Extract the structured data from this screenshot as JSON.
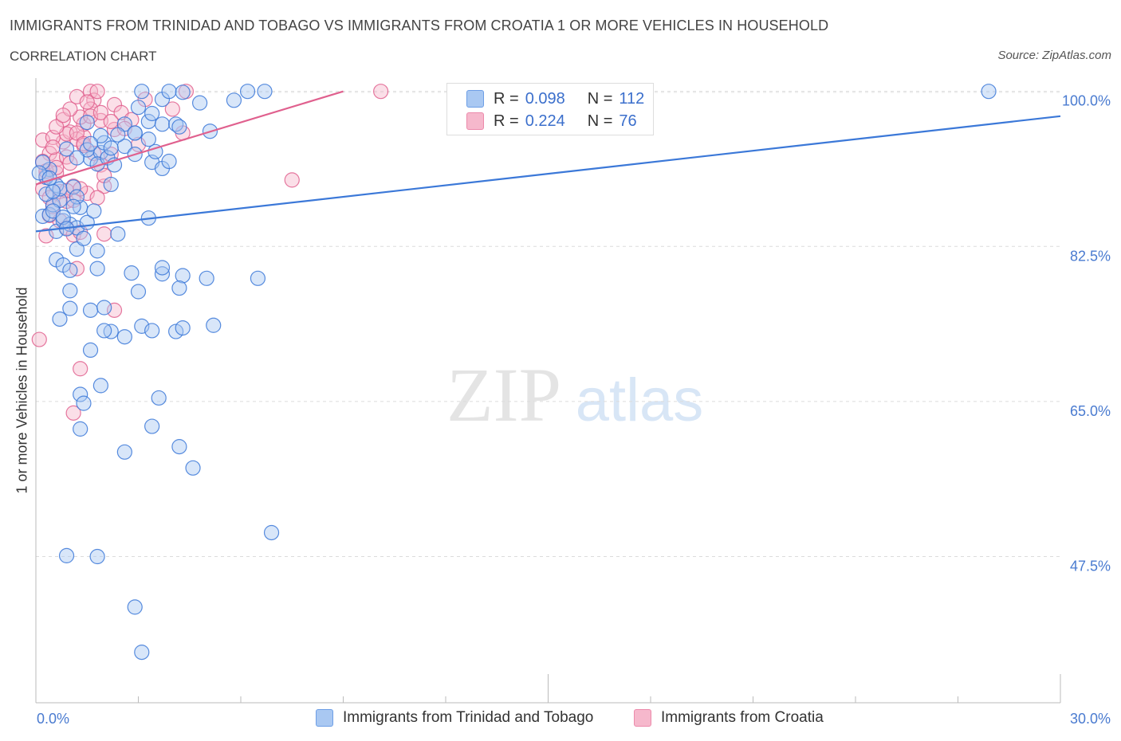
{
  "title": "IMMIGRANTS FROM TRINIDAD AND TOBAGO VS IMMIGRANTS FROM CROATIA 1 OR MORE VEHICLES IN HOUSEHOLD",
  "subtitle": "CORRELATION CHART",
  "source": "Source: ZipAtlas.com",
  "watermark": {
    "zip": "ZIP",
    "atlas": "atlas"
  },
  "legend": {
    "series1": {
      "r_label": "R = ",
      "r_value": "0.098",
      "n_label": "N = ",
      "n_value": "112"
    },
    "series2": {
      "r_label": "R = ",
      "r_value": "0.224",
      "n_label": "N = ",
      "n_value": "76"
    }
  },
  "chart_data": {
    "type": "scatter",
    "title": "IMMIGRANTS FROM TRINIDAD AND TOBAGO VS IMMIGRANTS FROM CROATIA 1 OR MORE VEHICLES IN HOUSEHOLD",
    "xlabel": "",
    "ylabel": "1 or more Vehicles in Household",
    "xlim": [
      0,
      30
    ],
    "ylim": [
      31,
      101.5
    ],
    "x_tick_labels": [
      {
        "value": 0,
        "label": "0.0%"
      },
      {
        "value": 30,
        "label": "30.0%"
      }
    ],
    "y_tick_labels": [
      {
        "value": 100,
        "label": "100.0%"
      },
      {
        "value": 82.5,
        "label": "82.5%"
      },
      {
        "value": 65,
        "label": "65.0%"
      },
      {
        "value": 47.5,
        "label": "47.5%"
      }
    ],
    "grid": true,
    "legend_position": "top-center",
    "colors": {
      "series1": "#3b78d8",
      "series2": "#e0608e",
      "fill1": "#a9c8f2",
      "fill2": "#f6b8cc"
    },
    "series": [
      {
        "name": "Immigrants from Trinidad and Tobago",
        "R": 0.098,
        "N": 112,
        "trend": {
          "x": [
            0,
            30
          ],
          "y": [
            84.2,
            97.2
          ]
        },
        "points": [
          [
            0.2,
            85.9
          ],
          [
            0.4,
            86.1
          ],
          [
            0.5,
            87.2
          ],
          [
            0.6,
            84.2
          ],
          [
            0.7,
            87.7
          ],
          [
            0.3,
            88.4
          ],
          [
            0.5,
            86.5
          ],
          [
            0.8,
            85.4
          ],
          [
            1.0,
            85.0
          ],
          [
            1.2,
            84.6
          ],
          [
            0.4,
            91.2
          ],
          [
            0.6,
            89.4
          ],
          [
            0.3,
            90.3
          ],
          [
            0.2,
            92.0
          ],
          [
            0.1,
            90.8
          ],
          [
            0.7,
            89.0
          ],
          [
            1.1,
            89.2
          ],
          [
            1.3,
            86.9
          ],
          [
            1.2,
            88.1
          ],
          [
            1.5,
            85.2
          ],
          [
            1.6,
            92.4
          ],
          [
            1.9,
            93.1
          ],
          [
            2.0,
            94.2
          ],
          [
            1.5,
            93.4
          ],
          [
            1.8,
            91.8
          ],
          [
            2.1,
            92.5
          ],
          [
            2.6,
            96.3
          ],
          [
            2.9,
            95.3
          ],
          [
            3.3,
            96.6
          ],
          [
            3.4,
            92.0
          ],
          [
            3.7,
            91.3
          ],
          [
            2.3,
            91.7
          ],
          [
            2.2,
            89.5
          ],
          [
            3.3,
            85.7
          ],
          [
            1.8,
            82.0
          ],
          [
            1.2,
            82.2
          ],
          [
            0.6,
            81.0
          ],
          [
            0.8,
            80.4
          ],
          [
            1.0,
            79.8
          ],
          [
            1.8,
            80.0
          ],
          [
            2.8,
            79.5
          ],
          [
            3.7,
            79.4
          ],
          [
            4.3,
            79.2
          ],
          [
            2.2,
            72.9
          ],
          [
            2.6,
            72.3
          ],
          [
            3.1,
            73.5
          ],
          [
            3.4,
            73.0
          ],
          [
            4.1,
            72.9
          ],
          [
            1.0,
            75.5
          ],
          [
            1.6,
            75.3
          ],
          [
            0.7,
            74.3
          ],
          [
            2.0,
            75.6
          ],
          [
            2.0,
            73.0
          ],
          [
            1.6,
            70.8
          ],
          [
            4.3,
            73.3
          ],
          [
            5.2,
            73.6
          ],
          [
            3.7,
            80.1
          ],
          [
            3.0,
            77.4
          ],
          [
            4.2,
            77.8
          ],
          [
            1.0,
            77.5
          ],
          [
            5.0,
            78.9
          ],
          [
            6.5,
            78.9
          ],
          [
            1.9,
            66.8
          ],
          [
            1.3,
            65.8
          ],
          [
            1.4,
            64.8
          ],
          [
            1.3,
            61.9
          ],
          [
            3.6,
            65.4
          ],
          [
            3.4,
            62.2
          ],
          [
            4.2,
            59.9
          ],
          [
            4.6,
            57.5
          ],
          [
            2.6,
            59.3
          ],
          [
            6.9,
            50.2
          ],
          [
            0.9,
            47.6
          ],
          [
            1.8,
            47.5
          ],
          [
            2.9,
            41.8
          ],
          [
            3.1,
            36.7
          ],
          [
            3.1,
            100.0
          ],
          [
            3.7,
            99.1
          ],
          [
            3.9,
            100.0
          ],
          [
            4.3,
            99.9
          ],
          [
            4.8,
            98.7
          ],
          [
            5.8,
            99.0
          ],
          [
            6.2,
            100.0
          ],
          [
            6.7,
            100.0
          ],
          [
            3.0,
            98.2
          ],
          [
            3.4,
            97.5
          ],
          [
            3.7,
            96.3
          ],
          [
            4.1,
            96.3
          ],
          [
            4.2,
            96.0
          ],
          [
            5.1,
            95.5
          ],
          [
            3.9,
            92.1
          ],
          [
            3.5,
            93.2
          ],
          [
            2.9,
            95.3
          ],
          [
            3.3,
            94.6
          ],
          [
            2.6,
            93.8
          ],
          [
            2.2,
            93.6
          ],
          [
            1.9,
            95.0
          ],
          [
            1.6,
            94.1
          ],
          [
            2.4,
            95.1
          ],
          [
            2.9,
            92.9
          ],
          [
            27.9,
            100.0
          ],
          [
            0.8,
            85.8
          ],
          [
            1.1,
            87.0
          ],
          [
            0.5,
            88.7
          ],
          [
            1.4,
            83.4
          ],
          [
            2.4,
            83.9
          ],
          [
            0.9,
            84.5
          ],
          [
            1.7,
            86.5
          ],
          [
            0.4,
            90.2
          ],
          [
            1.2,
            92.5
          ],
          [
            0.9,
            93.5
          ],
          [
            1.5,
            96.5
          ]
        ]
      },
      {
        "name": "Immigrants from Croatia",
        "R": 0.224,
        "N": 76,
        "trend": {
          "x": [
            0,
            9.0
          ],
          "y": [
            89.5,
            100.0
          ]
        },
        "points": [
          [
            0.1,
            72.0
          ],
          [
            0.2,
            94.5
          ],
          [
            0.4,
            93.0
          ],
          [
            0.6,
            92.3
          ],
          [
            0.8,
            94.3
          ],
          [
            1.0,
            95.4
          ],
          [
            1.2,
            94.6
          ],
          [
            1.4,
            94.9
          ],
          [
            0.5,
            94.8
          ],
          [
            0.9,
            95.2
          ],
          [
            0.3,
            90.5
          ],
          [
            0.6,
            90.8
          ],
          [
            0.2,
            89.0
          ],
          [
            0.7,
            88.7
          ],
          [
            1.1,
            89.3
          ],
          [
            1.5,
            88.5
          ],
          [
            0.4,
            88.0
          ],
          [
            0.9,
            87.6
          ],
          [
            1.3,
            89.0
          ],
          [
            2.0,
            89.3
          ],
          [
            1.6,
            100.0
          ],
          [
            1.7,
            99.0
          ],
          [
            1.8,
            100.0
          ],
          [
            1.6,
            98.0
          ],
          [
            2.3,
            98.5
          ],
          [
            2.5,
            97.6
          ],
          [
            2.8,
            96.8
          ],
          [
            3.2,
            99.1
          ],
          [
            4.0,
            98.0
          ],
          [
            4.4,
            100.0
          ],
          [
            1.4,
            96.3
          ],
          [
            1.9,
            96.7
          ],
          [
            2.3,
            95.7
          ],
          [
            1.3,
            97.1
          ],
          [
            1.6,
            97.2
          ],
          [
            1.9,
            97.6
          ],
          [
            2.2,
            96.6
          ],
          [
            1.2,
            95.3
          ],
          [
            0.8,
            96.8
          ],
          [
            0.6,
            96.0
          ],
          [
            0.2,
            92.1
          ],
          [
            0.3,
            91.0
          ],
          [
            0.5,
            93.7
          ],
          [
            0.9,
            92.6
          ],
          [
            1.4,
            93.9
          ],
          [
            1.7,
            93.0
          ],
          [
            1.9,
            91.7
          ],
          [
            2.0,
            90.5
          ],
          [
            1.8,
            88.0
          ],
          [
            1.1,
            87.7
          ],
          [
            0.4,
            86.0
          ],
          [
            0.7,
            85.4
          ],
          [
            0.9,
            84.6
          ],
          [
            1.1,
            83.8
          ],
          [
            1.3,
            84.1
          ],
          [
            0.3,
            83.7
          ],
          [
            2.0,
            83.9
          ],
          [
            0.5,
            87.0
          ],
          [
            1.2,
            80.0
          ],
          [
            2.3,
            75.3
          ],
          [
            1.3,
            68.7
          ],
          [
            1.1,
            63.7
          ],
          [
            7.5,
            90.0
          ],
          [
            10.1,
            100.0
          ],
          [
            4.3,
            95.3
          ],
          [
            2.6,
            95.8
          ],
          [
            1.0,
            98.0
          ],
          [
            1.2,
            99.4
          ],
          [
            1.5,
            98.8
          ],
          [
            3.0,
            94.0
          ],
          [
            0.8,
            97.3
          ],
          [
            1.4,
            94.1
          ],
          [
            0.6,
            91.4
          ],
          [
            1.0,
            91.9
          ],
          [
            2.2,
            92.9
          ],
          [
            0.9,
            88.8
          ]
        ]
      }
    ]
  },
  "bottom_legend": {
    "item1": "Immigrants from Trinidad and Tobago",
    "item2": "Immigrants from Croatia"
  }
}
